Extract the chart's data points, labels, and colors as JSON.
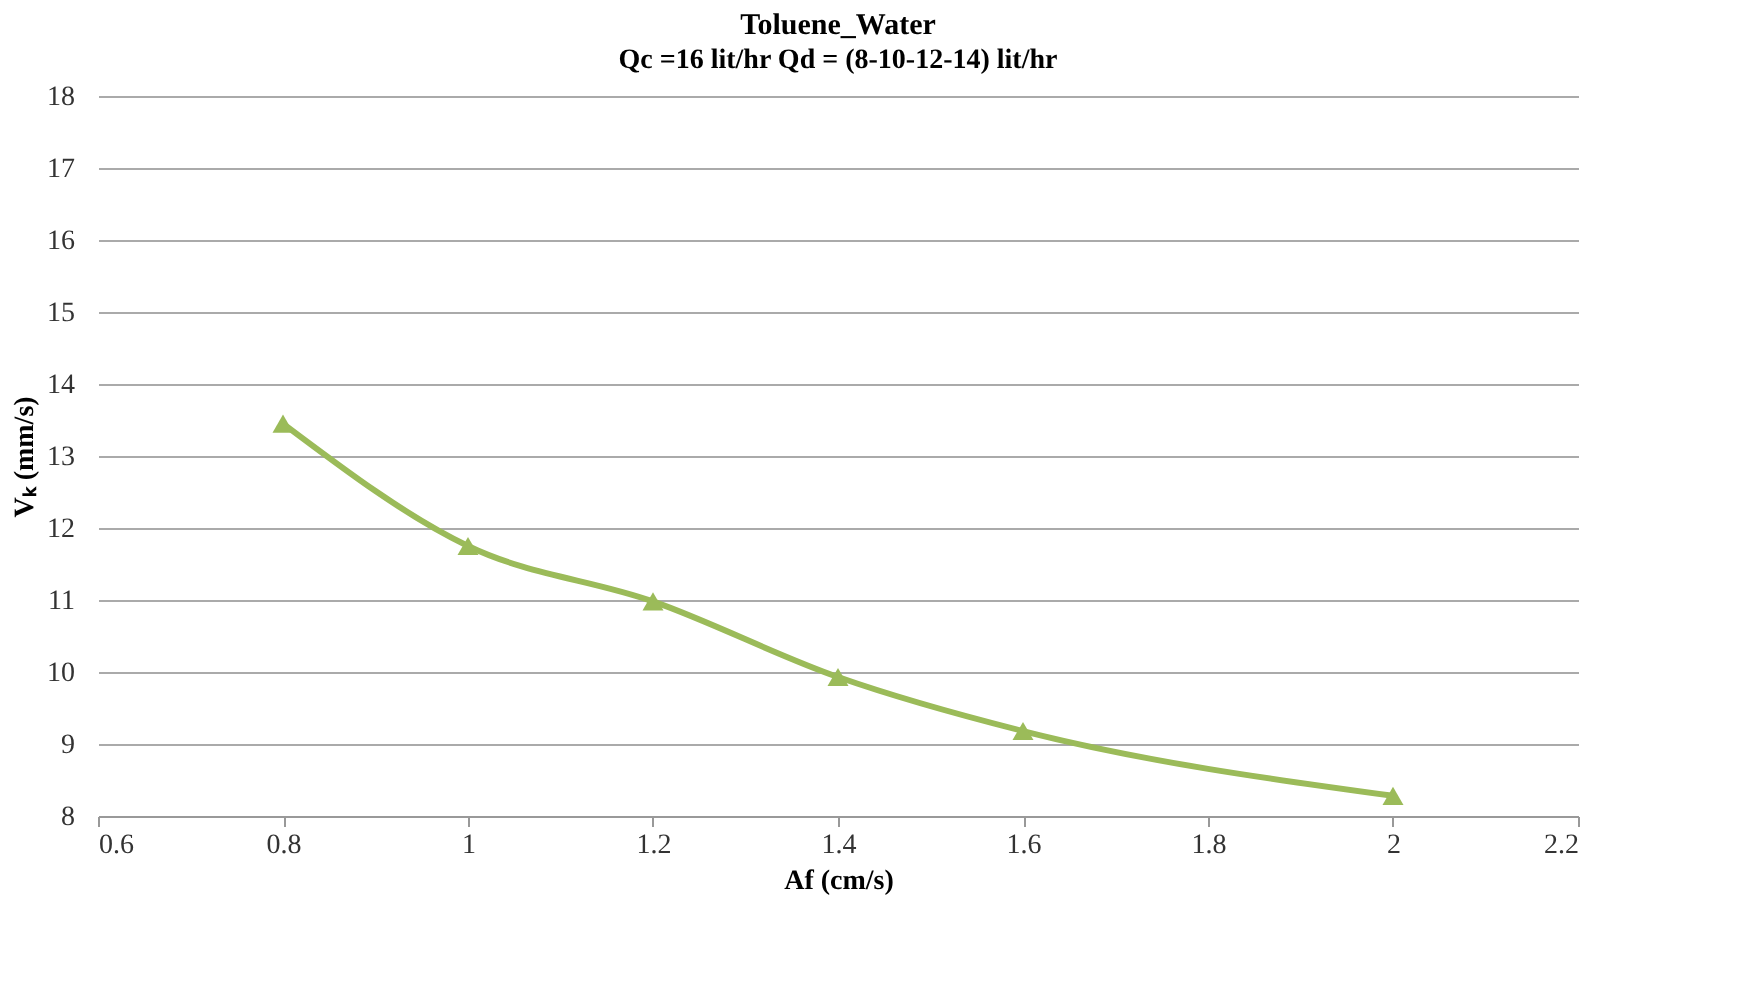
{
  "chart_data": {
    "type": "line",
    "title": "Toluene_Water",
    "subtitle": "Qc =16 lit/hr  Qd = (8-10-12-14) lit/hr",
    "xlabel": "Af (cm/s)",
    "ylabel": "Vₖ (mm/s)",
    "x": [
      0.8,
      1.0,
      1.2,
      1.4,
      1.6,
      2.0
    ],
    "series": [
      {
        "color": "#9bbb59",
        "values": [
          13.45,
          11.75,
          10.98,
          9.93,
          9.18,
          8.28
        ]
      }
    ],
    "xlim": [
      0.6,
      2.2
    ],
    "xticks": [
      0.6,
      0.8,
      1,
      1.2,
      1.4,
      1.6,
      1.8,
      2,
      2.2
    ],
    "ylim": [
      8,
      18
    ],
    "yticks": [
      8,
      9,
      10,
      11,
      12,
      13,
      14,
      15,
      16,
      17,
      18
    ],
    "grid": "y",
    "marker": "triangle",
    "line_style": "solid",
    "legend": false
  }
}
